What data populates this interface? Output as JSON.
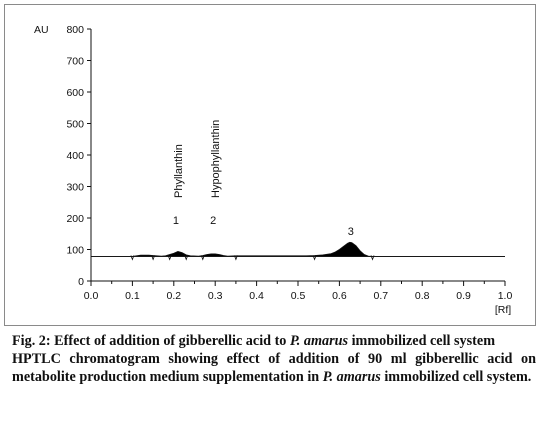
{
  "chart_data": {
    "type": "line",
    "ylabel": "AU",
    "xlabel": "[Rf]",
    "xlim": [
      0.0,
      1.0
    ],
    "ylim": [
      0,
      800
    ],
    "x_ticks": [
      "0.0",
      "0.1",
      "0.2",
      "0.3",
      "0.4",
      "0.5",
      "0.6",
      "0.7",
      "0.8",
      "0.9",
      "1.0"
    ],
    "y_ticks": [
      "0",
      "100",
      "200",
      "300",
      "400",
      "500",
      "600",
      "700",
      "800"
    ],
    "baseline": 78,
    "series": [
      {
        "x": [
          0.0,
          0.1,
          0.11,
          0.12,
          0.14,
          0.15,
          0.17,
          0.18,
          0.19,
          0.2,
          0.21,
          0.22,
          0.23,
          0.24,
          0.26,
          0.27,
          0.28,
          0.29,
          0.3,
          0.31,
          0.32,
          0.33,
          0.35,
          0.4,
          0.45,
          0.5,
          0.52,
          0.54,
          0.56,
          0.58,
          0.59,
          0.6,
          0.61,
          0.62,
          0.625,
          0.63,
          0.64,
          0.65,
          0.66,
          0.67,
          0.68,
          0.7,
          1.0
        ],
        "y": [
          78,
          78,
          80,
          82,
          82,
          81,
          79,
          80,
          84,
          88,
          94,
          90,
          83,
          80,
          79,
          81,
          84,
          86,
          86,
          84,
          81,
          79,
          80,
          80,
          80,
          80,
          80,
          81,
          83,
          87,
          92,
          100,
          110,
          120,
          123,
          122,
          112,
          96,
          84,
          79,
          78,
          78,
          78
        ]
      }
    ],
    "boundary_markers": [
      0.1,
      0.15,
      0.19,
      0.23,
      0.27,
      0.35,
      0.54,
      0.68
    ],
    "peaks": [
      {
        "number": "1",
        "name": "Phyllanthin",
        "rf": 0.21
      },
      {
        "number": "2",
        "name": "Hypophyllanthin",
        "rf": 0.3
      },
      {
        "number": "3",
        "name": "",
        "rf": 0.63
      }
    ]
  },
  "caption": {
    "title_prefix": "Fig. 2: Effect of addition of gibberellic acid to ",
    "title_species": "P. amarus",
    "title_suffix": " immobilized cell system",
    "body_prefix": "HPTLC chromatogram showing effect of addition of 90 ml gibberellic acid on metabolite production medium supplementation in ",
    "body_species": "P. amarus",
    "body_suffix": " immobilized cell system."
  },
  "colors": {
    "ink": "#111111",
    "fill": "#000000",
    "frame": "#8a8a8a"
  }
}
